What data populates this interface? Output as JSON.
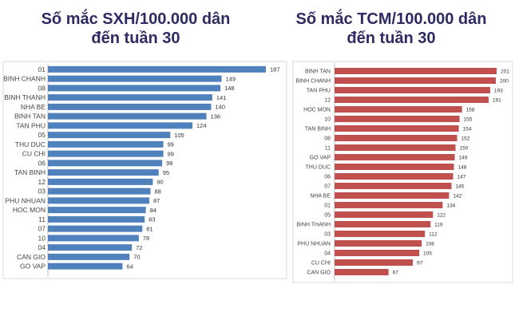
{
  "chart_data": [
    {
      "type": "bar",
      "orientation": "horizontal",
      "title_line1": "Số mắc SXH/100.000 dân",
      "title_line2": "đến tuần 30",
      "color": "#4f81bd",
      "categories": [
        "01",
        "BINH CHANH",
        "08",
        "BINH THANH",
        "NHA BE",
        "BINH TAN",
        "TAN PHU",
        "05",
        "THU DUC",
        "CU CHI",
        "06",
        "TAN BINH",
        "12",
        "03",
        "PHU NHUAN",
        "HOC MON",
        "11",
        "07",
        "10",
        "04",
        "CAN GIO",
        "GO VAP"
      ],
      "values": [
        187,
        149,
        148,
        141,
        140,
        136,
        124,
        105,
        99,
        99,
        98,
        95,
        90,
        88,
        87,
        84,
        83,
        81,
        78,
        72,
        70,
        64
      ],
      "xlim": [
        0,
        187
      ]
    },
    {
      "type": "bar",
      "orientation": "horizontal",
      "title_line1": "Số mắc TCM/100.000 dân",
      "title_line2": "đến tuần 30",
      "color": "#c0504d",
      "categories": [
        "BINH TAN",
        "BINH CHANH",
        "TAN PHU",
        "12",
        "HOC MON",
        "10",
        "TAN BINH",
        "08",
        "11",
        "GO VAP",
        "THU DUC",
        "06",
        "07",
        "NHA BE",
        "01",
        "05",
        "BINH THANH",
        "03",
        "PHU NHUAN",
        "04",
        "CU CHI",
        "CAN GIO"
      ],
      "values": [
        201,
        200,
        193,
        191,
        158,
        155,
        154,
        152,
        150,
        149,
        148,
        147,
        145,
        142,
        134,
        122,
        119,
        112,
        108,
        105,
        97,
        67
      ],
      "xlim": [
        0,
        201
      ]
    }
  ]
}
